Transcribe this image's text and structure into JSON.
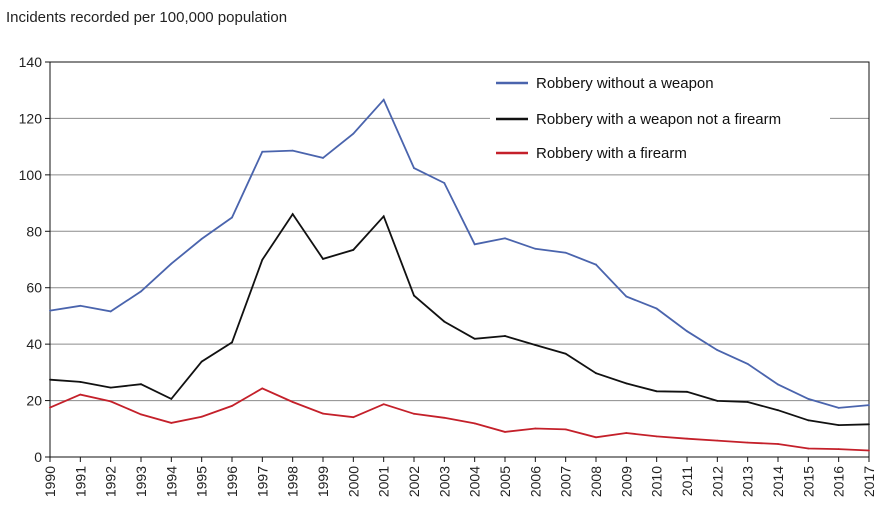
{
  "chart_data": {
    "type": "line",
    "title": "",
    "xlabel": "",
    "ylabel": "Incidents recorded per 100,000 population",
    "ylim": [
      0,
      140
    ],
    "yticks": [
      0,
      20,
      40,
      60,
      80,
      100,
      120,
      140
    ],
    "grid": true,
    "legend_position": "top-right",
    "x": [
      "1990",
      "1991",
      "1992",
      "1993",
      "1994",
      "1995",
      "1996",
      "1997",
      "1998",
      "1999",
      "2000",
      "2001",
      "2002",
      "2003",
      "2004",
      "2005",
      "2006",
      "2007",
      "2008",
      "2009",
      "2010",
      "2011",
      "2012",
      "2013",
      "2014",
      "2015",
      "2016",
      "2017"
    ],
    "series": [
      {
        "name": "Robbery without a weapon",
        "color": "#4a64ad",
        "values": [
          51.9,
          53.6,
          51.6,
          58.7,
          68.5,
          77.3,
          84.9,
          108.2,
          108.6,
          106.0,
          114.6,
          126.6,
          102.4,
          97.1,
          75.4,
          77.5,
          73.8,
          72.4,
          68.2,
          56.9,
          52.6,
          44.6,
          37.9,
          33.0,
          25.7,
          20.6,
          17.4,
          18.4
        ]
      },
      {
        "name": "Robbery with a weapon not a firearm",
        "color": "#111111",
        "values": [
          27.4,
          26.6,
          24.6,
          25.8,
          20.6,
          33.8,
          40.6,
          69.9,
          86.1,
          70.2,
          73.4,
          85.3,
          57.2,
          48.0,
          41.9,
          42.9,
          39.7,
          36.6,
          29.7,
          26.1,
          23.3,
          23.1,
          19.9,
          19.5,
          16.6,
          13.0,
          11.3,
          11.6
        ]
      },
      {
        "name": "Robbery with a firearm",
        "color": "#c4202a",
        "values": [
          17.5,
          22.1,
          19.7,
          15.1,
          12.1,
          14.3,
          18.1,
          24.3,
          19.5,
          15.4,
          14.1,
          18.7,
          15.3,
          13.9,
          11.9,
          8.9,
          10.1,
          9.8,
          7.0,
          8.5,
          7.3,
          6.5,
          5.8,
          5.1,
          4.6,
          3.0,
          2.8,
          2.3
        ]
      }
    ]
  }
}
